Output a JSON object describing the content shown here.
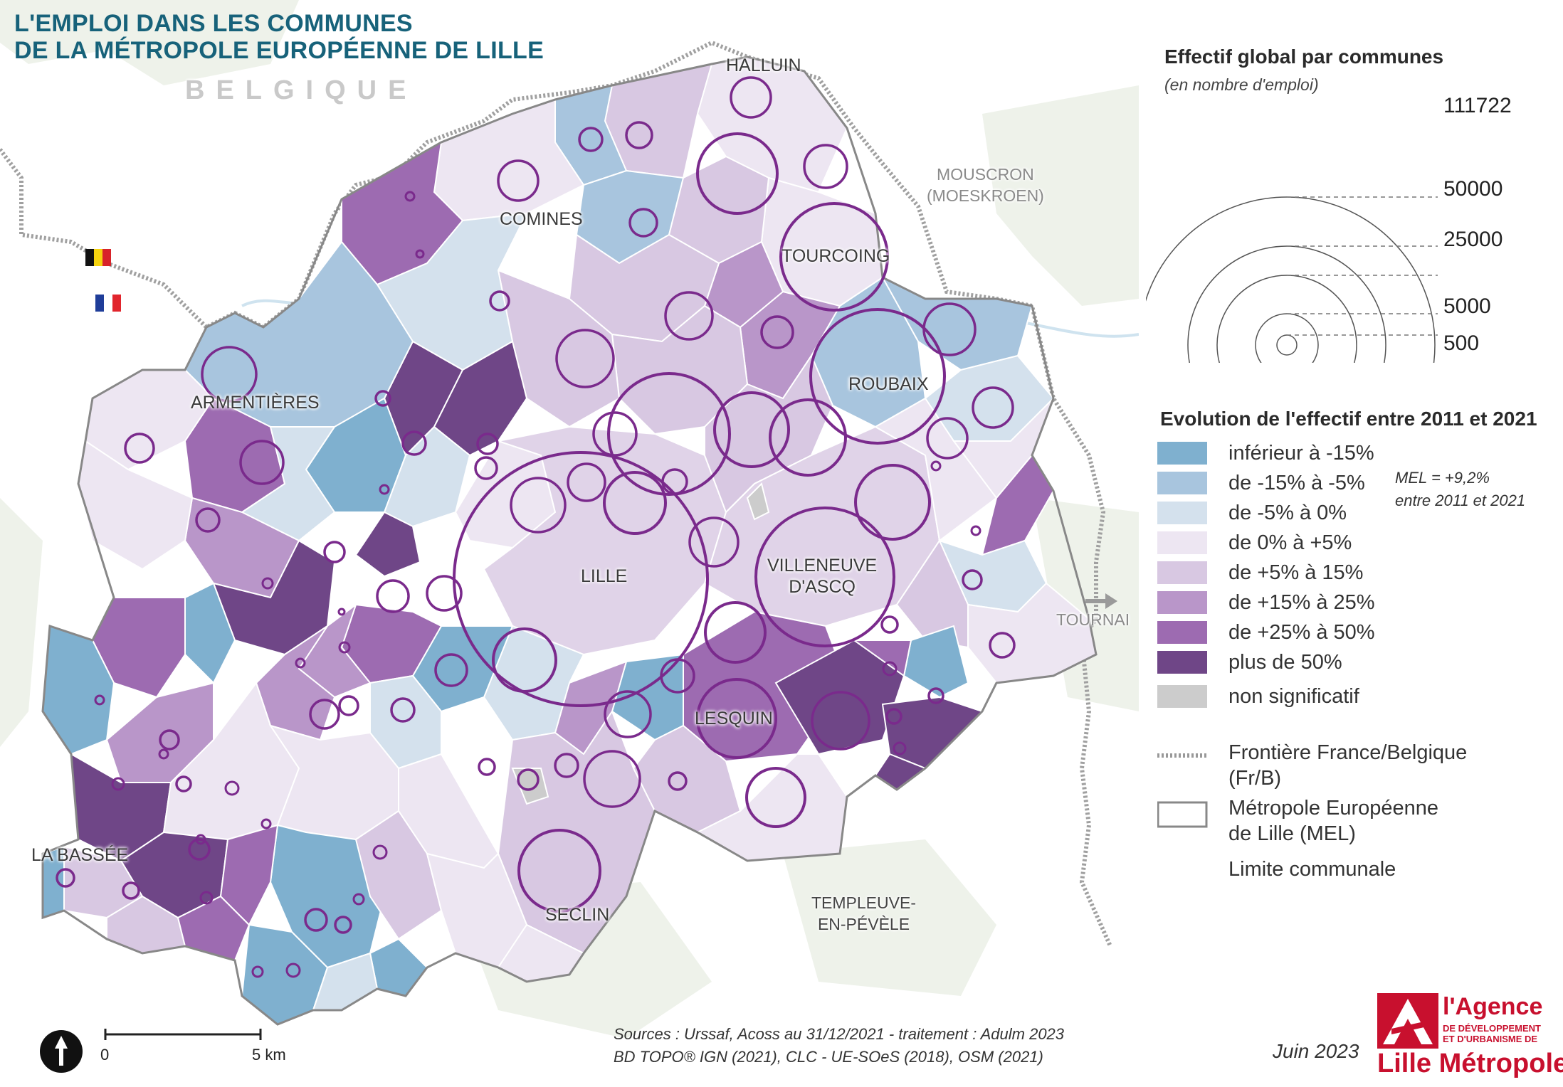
{
  "title": {
    "line1": "L'EMPLOI DANS LES COMMUNES",
    "line2": "DE LA MÉTROPOLE EUROPÉENNE DE LILLE"
  },
  "map": {
    "country_label": "BELGIQUE",
    "flags": [
      "belgium-flag",
      "france-flag"
    ],
    "communes": [
      {
        "name": "HALLUIN"
      },
      {
        "name": "COMINES"
      },
      {
        "name": "TOURCOING"
      },
      {
        "name": "ROUBAIX"
      },
      {
        "name": "ARMENTIÈRES"
      },
      {
        "name": "LILLE"
      },
      {
        "name": "VILLENEUVE\nD'ASCQ"
      },
      {
        "name": "LESQUIN"
      },
      {
        "name": "SECLIN"
      },
      {
        "name": "LA BASSÉE"
      }
    ],
    "external_places": {
      "mouscron": "MOUSCRON\n(MOESKROEN)",
      "tournai": "TOURNAI",
      "templeuve": "TEMPLEUVE-\nEN-PÉVÈLE"
    },
    "scale": {
      "zero": "0",
      "end": "5 km"
    },
    "north_arrow": "north-arrow-icon",
    "colors": {
      "c1": "#7fb0cf",
      "c2": "#a8c5de",
      "c3": "#d4e1ed",
      "c4": "#ede6f2",
      "c5": "#d8c8e2",
      "c6": "#b996c9",
      "c7": "#9d6bb1",
      "c8": "#6f4687",
      "ns": "#cccccc",
      "circle": "#7a2a8c"
    }
  },
  "legend": {
    "size_title": "Effectif global par communes",
    "size_subtitle": "(en nombre d'emploi)",
    "size_values": [
      "111722",
      "50000",
      "25000",
      "5000",
      "500"
    ],
    "evolution_title": "Evolution de l'effectif entre 2011 et 2021",
    "classes": [
      {
        "label": "inférieur à -15%",
        "color": "#7fb0cf"
      },
      {
        "label": "de -15% à -5%",
        "color": "#a8c5de"
      },
      {
        "label": "de -5% à 0%",
        "color": "#d4e1ed"
      },
      {
        "label": "de 0% à +5%",
        "color": "#ede6f2"
      },
      {
        "label": "de +5% à 15%",
        "color": "#d8c8e2"
      },
      {
        "label": "de +15% à 25%",
        "color": "#b996c9"
      },
      {
        "label": "de +25% à 50%",
        "color": "#9d6bb1"
      },
      {
        "label": "plus de 50%",
        "color": "#6f4687"
      },
      {
        "label": "non significatif",
        "color": "#cccccc"
      }
    ],
    "mel_note_line1": "MEL = +9,2%",
    "mel_note_line2": "entre 2011 et 2021",
    "frontier_line1": "Frontière France/Belgique",
    "frontier_line2": "(Fr/B)",
    "mel_line1": "Métropole Européenne",
    "mel_line2": "de Lille (MEL)",
    "commune_limit": "Limite communale"
  },
  "footer": {
    "sources_line1": "Sources :  Urssaf, Acoss au 31/12/2021 - traitement : Adulm 2023",
    "sources_line2": "BD TOPO® IGN (2021), CLC - UE-SOeS (2018), OSM (2021)",
    "date": "Juin 2023",
    "agency_top": "l'Agence",
    "agency_mid1": "DE DÉVELOPPEMENT",
    "agency_mid2": "ET D'URBANISME DE",
    "agency_bottom": "Lille Métropole"
  }
}
